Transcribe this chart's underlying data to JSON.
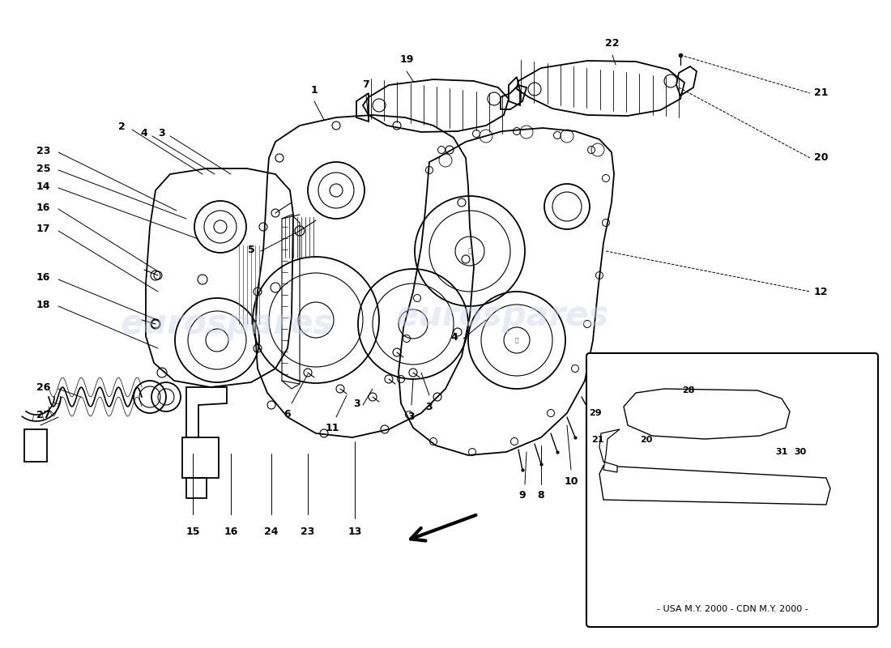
{
  "background_color": "#ffffff",
  "line_color": "#000000",
  "watermark_color": "#c8d4e8",
  "watermark_text": "eurospares",
  "inset_label": "USA M.Y. 2000 - CDN M.Y. 2000",
  "fig_width": 11.0,
  "fig_height": 8.0,
  "dpi": 100
}
